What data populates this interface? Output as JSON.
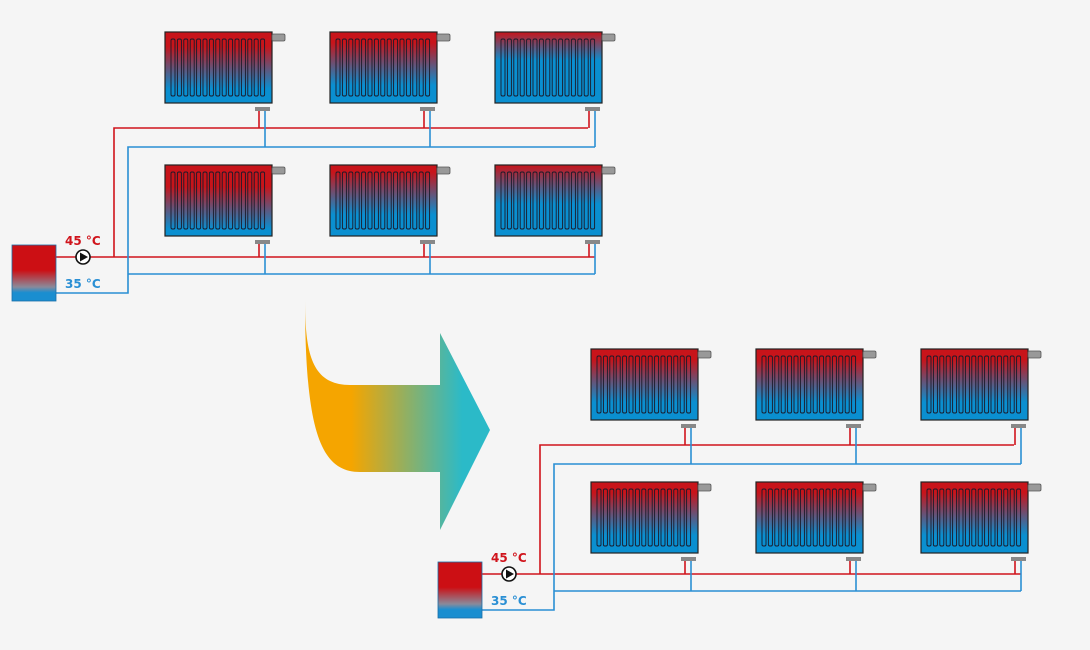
{
  "colors": {
    "supply": "#d0141c",
    "return": "#2a8fd4",
    "arrow_start": "#f5a500",
    "arrow_end": "#2bbac8",
    "hot": "#c8141a",
    "cold": "#0a8fd0"
  },
  "before": {
    "supply_temp": "45 °C",
    "return_temp": "35 °C",
    "radiator_heat_fraction": [
      0.55,
      0.5,
      0.15,
      0.65,
      0.45,
      0.3
    ]
  },
  "after": {
    "supply_temp": "45 °C",
    "return_temp": "35 °C",
    "radiator_heat_fraction": [
      0.5,
      0.5,
      0.5,
      0.5,
      0.5,
      0.5
    ]
  }
}
